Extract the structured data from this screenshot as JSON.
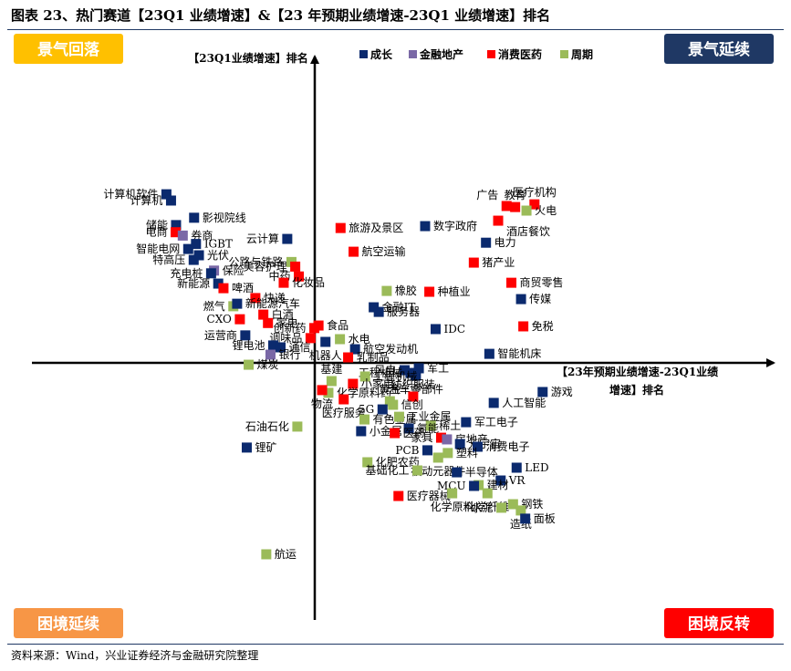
{
  "header": {
    "title": "图表 23、热门赛道【23Q1 业绩增速】&【23 年预期业绩增速-23Q1 业绩增速】排名"
  },
  "footer": {
    "source": "资料来源：Wind，兴业证券经济与金融研究院整理"
  },
  "colors": {
    "growth": "#0b2a6e",
    "realestate": "#7a68a6",
    "consumer": "#ff0000",
    "cyclical": "#9bbb59",
    "axis": "#000000",
    "tl_box": "#ffc000",
    "tr_box": "#1f3864",
    "bl_box": "#f79646",
    "br_box": "#ff0000"
  },
  "chart_data": {
    "type": "scatter",
    "title": "",
    "ylabel": "【23Q1业绩增速】排名",
    "xlabel_line1": "【23年预期业绩增速-23Q1业绩",
    "xlabel_line2": "增速】排名",
    "xlim": [
      -100,
      100
    ],
    "ylim": [
      -100,
      100
    ],
    "quadrants": {
      "top_left": "景气回落",
      "top_right": "景气延续",
      "bottom_left": "困境延续",
      "bottom_right": "困境反转"
    },
    "legend": [
      {
        "key": "growth",
        "label": "成长"
      },
      {
        "key": "realestate",
        "label": "金融地产"
      },
      {
        "key": "consumer",
        "label": "消费医药"
      },
      {
        "key": "cyclical",
        "label": "周期"
      }
    ],
    "points": [
      {
        "label": "计算机软件",
        "group": "growth",
        "x": -70.7,
        "y": 80.4,
        "lpos": "l"
      },
      {
        "label": "计算机",
        "group": "growth",
        "x": -68.5,
        "y": 77.4,
        "lpos": "l"
      },
      {
        "label": "储能",
        "group": "growth",
        "x": -66.1,
        "y": 65.7,
        "lpos": "l"
      },
      {
        "label": "影视院线",
        "group": "growth",
        "x": -57.5,
        "y": 69.2,
        "lpos": "r"
      },
      {
        "label": "电商",
        "group": "consumer",
        "x": -66.3,
        "y": 62.3,
        "lpos": "l"
      },
      {
        "label": "券商",
        "group": "realestate",
        "x": -62.9,
        "y": 60.7,
        "lpos": "r"
      },
      {
        "label": "IGBT",
        "group": "growth",
        "x": -56.6,
        "y": 56.7,
        "lpos": "r"
      },
      {
        "label": "智能电网",
        "group": "growth",
        "x": -60.3,
        "y": 54.3,
        "lpos": "l"
      },
      {
        "label": "光伏",
        "group": "growth",
        "x": -55.2,
        "y": 51.3,
        "lpos": "r"
      },
      {
        "label": "特高压",
        "group": "growth",
        "x": -57.7,
        "y": 49.1,
        "lpos": "l"
      },
      {
        "label": "保险",
        "group": "realestate",
        "x": -48.0,
        "y": 44.0,
        "lpos": "r"
      },
      {
        "label": "充电桩",
        "group": "growth",
        "x": -49.4,
        "y": 42.7,
        "lpos": "l"
      },
      {
        "label": "新能源",
        "group": "growth",
        "x": -46.0,
        "y": 37.8,
        "lpos": "l"
      },
      {
        "label": "啤酒",
        "group": "consumer",
        "x": -43.5,
        "y": 35.6,
        "lpos": "r"
      },
      {
        "label": "云计算",
        "group": "growth",
        "x": -13.1,
        "y": 59.1,
        "lpos": "l"
      },
      {
        "label": "公路与铁路",
        "group": "cyclical",
        "x": -11.1,
        "y": 48.1,
        "lpos": "l"
      },
      {
        "label": "美容护理",
        "group": "consumer",
        "x": -9.3,
        "y": 45.9,
        "lpos": "l"
      },
      {
        "label": "中药",
        "group": "consumer",
        "x": -7.6,
        "y": 41.2,
        "lpos": "l"
      },
      {
        "label": "化妆品",
        "group": "consumer",
        "x": -14.8,
        "y": 38.2,
        "lpos": "r"
      },
      {
        "label": "快递",
        "group": "consumer",
        "x": -28.3,
        "y": 30.9,
        "lpos": "r"
      },
      {
        "label": "燃气",
        "group": "cyclical",
        "x": -38.8,
        "y": 27.0,
        "lpos": "l"
      },
      {
        "label": "新能源汽车",
        "group": "growth",
        "x": -37.0,
        "y": 28.2,
        "lpos": "r"
      },
      {
        "label": "白酒",
        "group": "consumer",
        "x": -24.5,
        "y": 23.0,
        "lpos": "r"
      },
      {
        "label": "CXO",
        "group": "consumer",
        "x": -35.7,
        "y": 20.8,
        "lpos": "l"
      },
      {
        "label": "家电",
        "group": "consumer",
        "x": -22.3,
        "y": 19.0,
        "lpos": "r"
      },
      {
        "label": "食品",
        "group": "consumer",
        "x": 1.8,
        "y": 17.8,
        "lpos": "r"
      },
      {
        "label": "创新药",
        "group": "consumer",
        "x": -0.2,
        "y": 16.6,
        "lpos": "l"
      },
      {
        "label": "调味品",
        "group": "consumer",
        "x": -2.0,
        "y": 11.8,
        "lpos": "l"
      },
      {
        "label": "运营商",
        "group": "growth",
        "x": -33.1,
        "y": 13.1,
        "lpos": "l"
      },
      {
        "label": "锂电池",
        "group": "growth",
        "x": -19.8,
        "y": 8.3,
        "lpos": "l"
      },
      {
        "label": "通信",
        "group": "growth",
        "x": -16.3,
        "y": 7.4,
        "lpos": "r"
      },
      {
        "label": "银行",
        "group": "realestate",
        "x": -21.1,
        "y": 3.9,
        "lpos": "r"
      },
      {
        "label": "煤炭",
        "group": "cyclical",
        "x": -31.5,
        "y": -0.9,
        "lpos": "r"
      },
      {
        "label": "旅游及景区",
        "group": "consumer",
        "x": 12.3,
        "y": 64.3,
        "lpos": "r"
      },
      {
        "label": "航空运输",
        "group": "consumer",
        "x": 18.5,
        "y": 53.0,
        "lpos": "r"
      },
      {
        "label": "橡胶",
        "group": "cyclical",
        "x": 34.3,
        "y": 34.3,
        "lpos": "r"
      },
      {
        "label": "金融IT",
        "group": "growth",
        "x": 28.1,
        "y": 26.5,
        "lpos": "r"
      },
      {
        "label": "服务器",
        "group": "growth",
        "x": 30.5,
        "y": 24.3,
        "lpos": "r"
      },
      {
        "label": "水电",
        "group": "cyclical",
        "x": 12.0,
        "y": 11.3,
        "lpos": "r"
      },
      {
        "label": "机器人",
        "group": "growth",
        "x": 5.1,
        "y": 10.0,
        "lpos": "b"
      },
      {
        "label": "航空发动机",
        "group": "growth",
        "x": 19.2,
        "y": 6.5,
        "lpos": "r"
      },
      {
        "label": "乳制品",
        "group": "consumer",
        "x": 15.9,
        "y": 2.6,
        "lpos": "r"
      },
      {
        "label": "数字政府",
        "group": "growth",
        "x": 52.6,
        "y": 65.2,
        "lpos": "r"
      },
      {
        "label": "种植业",
        "group": "consumer",
        "x": 54.6,
        "y": 33.9,
        "lpos": "r"
      },
      {
        "label": "IDC",
        "group": "growth",
        "x": 57.6,
        "y": 16.1,
        "lpos": "r"
      },
      {
        "label": "教育",
        "group": "consumer",
        "x": 95.5,
        "y": 74.3,
        "lpos": "t"
      },
      {
        "label": "医疗机构",
        "group": "consumer",
        "x": 104.7,
        "y": 75.6,
        "lpos": "t"
      },
      {
        "label": "广告",
        "group": "consumer",
        "x": 91.4,
        "y": 74.8,
        "lpos": "tl"
      },
      {
        "label": "火电",
        "group": "cyclical",
        "x": 100.9,
        "y": 72.6,
        "lpos": "r"
      },
      {
        "label": "酒店餐饮",
        "group": "consumer",
        "x": 87.4,
        "y": 67.8,
        "lpos": "br"
      },
      {
        "label": "电力",
        "group": "growth",
        "x": 81.6,
        "y": 57.3,
        "lpos": "r"
      },
      {
        "label": "猪产业",
        "group": "consumer",
        "x": 75.8,
        "y": 47.8,
        "lpos": "r"
      },
      {
        "label": "商贸零售",
        "group": "consumer",
        "x": 93.7,
        "y": 38.2,
        "lpos": "r"
      },
      {
        "label": "传媒",
        "group": "growth",
        "x": 98.3,
        "y": 30.4,
        "lpos": "r"
      },
      {
        "label": "免税",
        "group": "consumer",
        "x": 99.4,
        "y": 17.4,
        "lpos": "r"
      },
      {
        "label": "智能机床",
        "group": "growth",
        "x": 83.2,
        "y": 4.3,
        "lpos": "r"
      },
      {
        "label": "风电",
        "group": "growth",
        "x": 42.8,
        "y": -3.5,
        "lpos": "l"
      },
      {
        "label": "军工",
        "group": "growth",
        "x": 49.6,
        "y": -2.6,
        "lpos": "r"
      },
      {
        "label": "工程机械",
        "group": "growth",
        "x": 45.6,
        "y": -4.8,
        "lpos": "l"
      },
      {
        "label": "汽车零部件",
        "group": "growth",
        "x": 48.2,
        "y": -6.1,
        "lpos": "b"
      },
      {
        "label": "基建",
        "group": "cyclical",
        "x": 8.0,
        "y": -8.7,
        "lpos": "t"
      },
      {
        "label": "工程机械",
        "group": "cyclical",
        "x": 24.0,
        "y": -6.5,
        "lpos": "r"
      },
      {
        "label": "小家电",
        "group": "consumer",
        "x": 18.2,
        "y": -10.0,
        "lpos": "r"
      },
      {
        "label": "化学原料药",
        "group": "cyclical",
        "x": 6.5,
        "y": -14.3,
        "lpos": "r"
      },
      {
        "label": "纺织服装",
        "group": "consumer",
        "x": 46.9,
        "y": -16.1,
        "lpos": "t"
      },
      {
        "label": "物流",
        "group": "consumer",
        "x": 3.5,
        "y": -13.0,
        "lpos": "b"
      },
      {
        "label": "医疗服务",
        "group": "consumer",
        "x": 13.8,
        "y": -17.4,
        "lpos": "b"
      },
      {
        "label": "黄金",
        "group": "cyclical",
        "x": 35.8,
        "y": -18.3,
        "lpos": "t"
      },
      {
        "label": "5G",
        "group": "growth",
        "x": 32.3,
        "y": -22.2,
        "lpos": "l"
      },
      {
        "label": "信创",
        "group": "cyclical",
        "x": 37.3,
        "y": -20.0,
        "lpos": "r"
      },
      {
        "label": "有色金属",
        "group": "cyclical",
        "x": 23.7,
        "y": -27.0,
        "lpos": "r"
      },
      {
        "label": "工业金属",
        "group": "cyclical",
        "x": 40.2,
        "y": -25.7,
        "lpos": "r"
      },
      {
        "label": "稀土",
        "group": "cyclical",
        "x": 55.3,
        "y": -30.0,
        "lpos": "r"
      },
      {
        "label": "小金属",
        "group": "growth",
        "x": 22.1,
        "y": -32.6,
        "lpos": "r"
      },
      {
        "label": "氢能",
        "group": "growth",
        "x": 44.8,
        "y": -31.3,
        "lpos": "r"
      },
      {
        "label": "医药",
        "group": "consumer",
        "x": 38.1,
        "y": -33.5,
        "lpos": "r"
      },
      {
        "label": "家具",
        "group": "consumer",
        "x": 60.2,
        "y": -35.7,
        "lpos": "l"
      },
      {
        "label": "房地产",
        "group": "realestate",
        "x": 63.0,
        "y": -36.5,
        "lpos": "r"
      },
      {
        "label": "军工电子",
        "group": "growth",
        "x": 72.1,
        "y": -28.3,
        "lpos": "r"
      },
      {
        "label": "元宇宙",
        "group": "growth",
        "x": 69.2,
        "y": -38.7,
        "lpos": "r"
      },
      {
        "label": "消费电子",
        "group": "growth",
        "x": 77.6,
        "y": -40.0,
        "lpos": "r"
      },
      {
        "label": "PCB",
        "group": "growth",
        "x": 53.7,
        "y": -41.7,
        "lpos": "l"
      },
      {
        "label": "塑料",
        "group": "cyclical",
        "x": 63.4,
        "y": -43.0,
        "lpos": "r"
      },
      {
        "label": "化肥农药",
        "group": "cyclical",
        "x": 25.1,
        "y": -47.4,
        "lpos": "r"
      },
      {
        "label": "被动元器件",
        "group": "cyclical",
        "x": 58.8,
        "y": -45.2,
        "lpos": "b"
      },
      {
        "label": "基础化工",
        "group": "cyclical",
        "x": 48.9,
        "y": -51.3,
        "lpos": "l"
      },
      {
        "label": "半导体",
        "group": "growth",
        "x": 67.7,
        "y": -52.2,
        "lpos": "r"
      },
      {
        "label": "LED",
        "group": "growth",
        "x": 96.2,
        "y": -50.0,
        "lpos": "r"
      },
      {
        "label": "VR",
        "group": "growth",
        "x": 88.6,
        "y": -56.1,
        "lpos": "r"
      },
      {
        "label": "建材",
        "group": "cyclical",
        "x": 78.1,
        "y": -58.3,
        "lpos": "r"
      },
      {
        "label": "MCU",
        "group": "growth",
        "x": 75.9,
        "y": -58.7,
        "lpos": "l"
      },
      {
        "label": "化学纤维",
        "group": "cyclical",
        "x": 82.3,
        "y": -62.2,
        "lpos": "b"
      },
      {
        "label": "医疗器械",
        "group": "consumer",
        "x": 39.9,
        "y": -63.5,
        "lpos": "r"
      },
      {
        "label": "化学原料",
        "group": "cyclical",
        "x": 65.5,
        "y": -62.2,
        "lpos": "b"
      },
      {
        "label": "钢铁",
        "group": "cyclical",
        "x": 94.5,
        "y": -67.4,
        "lpos": "r"
      },
      {
        "label": "水泥",
        "group": "cyclical",
        "x": 88.9,
        "y": -69.1,
        "lpos": "l"
      },
      {
        "label": "造纸",
        "group": "cyclical",
        "x": 98.2,
        "y": -70.4,
        "lpos": "b"
      },
      {
        "label": "面板",
        "group": "growth",
        "x": 100.3,
        "y": -74.3,
        "lpos": "r"
      },
      {
        "label": "游戏",
        "group": "growth",
        "x": 108.6,
        "y": -13.9,
        "lpos": "r"
      },
      {
        "label": "人工智能",
        "group": "growth",
        "x": 85.3,
        "y": -19.1,
        "lpos": "r"
      },
      {
        "label": "石油石化",
        "group": "cyclical",
        "x": -8.3,
        "y": -30.4,
        "lpos": "l"
      },
      {
        "label": "锂矿",
        "group": "growth",
        "x": -32.4,
        "y": -40.4,
        "lpos": "r"
      },
      {
        "label": "航运",
        "group": "cyclical",
        "x": -23.1,
        "y": -91.3,
        "lpos": "r"
      }
    ]
  }
}
